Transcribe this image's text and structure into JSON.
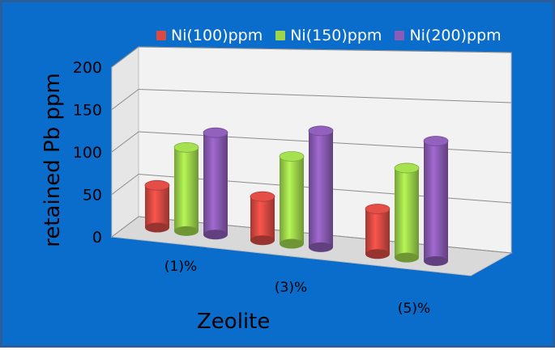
{
  "chart_data": {
    "type": "bar",
    "categories": [
      "(1)%",
      "(3)%",
      "(5)%"
    ],
    "series": [
      {
        "name": "Ni(100)ppm",
        "values": [
          58,
          60,
          62
        ],
        "color": "#d94a43"
      },
      {
        "name": "Ni(150)ppm",
        "values": [
          115,
          120,
          123
        ],
        "color": "#9ed64b"
      },
      {
        "name": "Ni(200)ppm",
        "values": [
          140,
          160,
          165
        ],
        "color": "#8b5cb5"
      }
    ],
    "xlabel": "Zeolite",
    "ylabel": "retained Pb ppm",
    "ylim": [
      0,
      200
    ],
    "yticks": [
      "0",
      "50",
      "100",
      "150",
      "200"
    ],
    "grid": true,
    "legend_position": "top"
  }
}
